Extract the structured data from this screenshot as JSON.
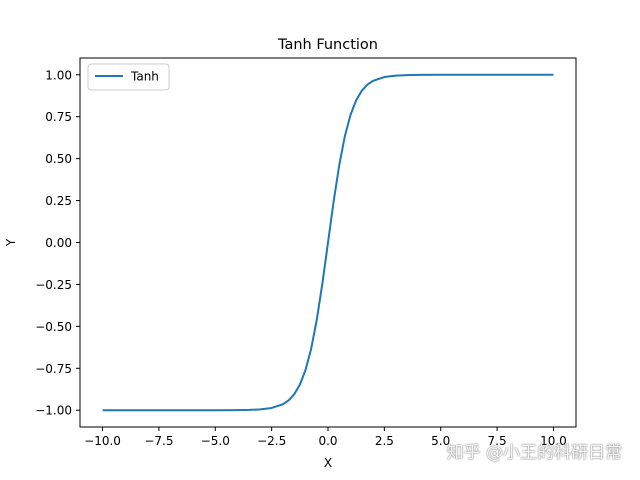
{
  "chart_data": {
    "type": "line",
    "title": "Tanh Function",
    "xlabel": "X",
    "ylabel": "Y",
    "xlim": [
      -11,
      11
    ],
    "ylim": [
      -1.1,
      1.1
    ],
    "x_ticks": [
      -10.0,
      -7.5,
      -5.0,
      -2.5,
      0.0,
      2.5,
      5.0,
      7.5,
      10.0
    ],
    "x_tick_labels": [
      "−10.0",
      "−7.5",
      "−5.0",
      "−2.5",
      "0.0",
      "2.5",
      "5.0",
      "7.5",
      "10.0"
    ],
    "y_ticks": [
      -1.0,
      -0.75,
      -0.5,
      -0.25,
      0.0,
      0.25,
      0.5,
      0.75,
      1.0
    ],
    "y_tick_labels": [
      "−1.00",
      "−0.75",
      "−0.50",
      "−0.25",
      "0.00",
      "0.25",
      "0.50",
      "0.75",
      "1.00"
    ],
    "grid": false,
    "legend_position": "top-left",
    "series": [
      {
        "name": "Tanh",
        "color": "#1f77b4",
        "x": [
          -10,
          -9,
          -8,
          -7,
          -6,
          -5,
          -4,
          -3.5,
          -3,
          -2.5,
          -2,
          -1.75,
          -1.5,
          -1.25,
          -1,
          -0.75,
          -0.5,
          -0.25,
          0,
          0.25,
          0.5,
          0.75,
          1,
          1.25,
          1.5,
          1.75,
          2,
          2.5,
          3,
          3.5,
          4,
          5,
          6,
          7,
          8,
          9,
          10
        ],
        "y": [
          -1.0,
          -1.0,
          -1.0,
          -1.0,
          -1.0,
          -0.9999,
          -0.9993,
          -0.9982,
          -0.9951,
          -0.9866,
          -0.964,
          -0.9414,
          -0.9051,
          -0.8483,
          -0.7616,
          -0.6351,
          -0.4621,
          -0.2449,
          0.0,
          0.2449,
          0.4621,
          0.6351,
          0.7616,
          0.8483,
          0.9051,
          0.9414,
          0.964,
          0.9866,
          0.9951,
          0.9982,
          0.9993,
          0.9999,
          1.0,
          1.0,
          1.0,
          1.0,
          1.0
        ]
      }
    ]
  },
  "watermark": "知乎 @小王的科研日常"
}
